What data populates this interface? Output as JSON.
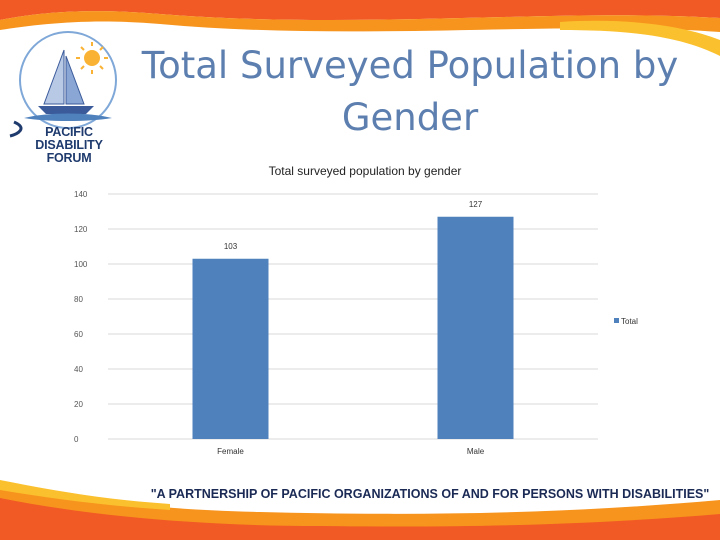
{
  "slide": {
    "title": "Total Surveyed Population by Gender",
    "tagline": "\"A PARTNERSHIP OF PACIFIC ORGANIZATIONS OF AND FOR PERSONS WITH DISABILITIES\""
  },
  "logo": {
    "line1": "PACIFIC DISABILITY",
    "line2": "FORUM",
    "icon": "sailboat-sun-logo"
  },
  "colors": {
    "accent_orange": "#f47a20",
    "accent_yellow": "#f9b233",
    "bar_blue": "#4f81bd",
    "title_blue": "#5c7fb0"
  },
  "chart_data": {
    "type": "bar",
    "title": "Total surveyed population by gender",
    "categories": [
      "Female",
      "Male"
    ],
    "series": [
      {
        "name": "Total",
        "values": [
          103,
          127
        ]
      }
    ],
    "ylim": [
      0,
      140
    ],
    "yticks": [
      0,
      20,
      40,
      60,
      80,
      100,
      120,
      140
    ],
    "grid": true,
    "legend_position": "right"
  }
}
